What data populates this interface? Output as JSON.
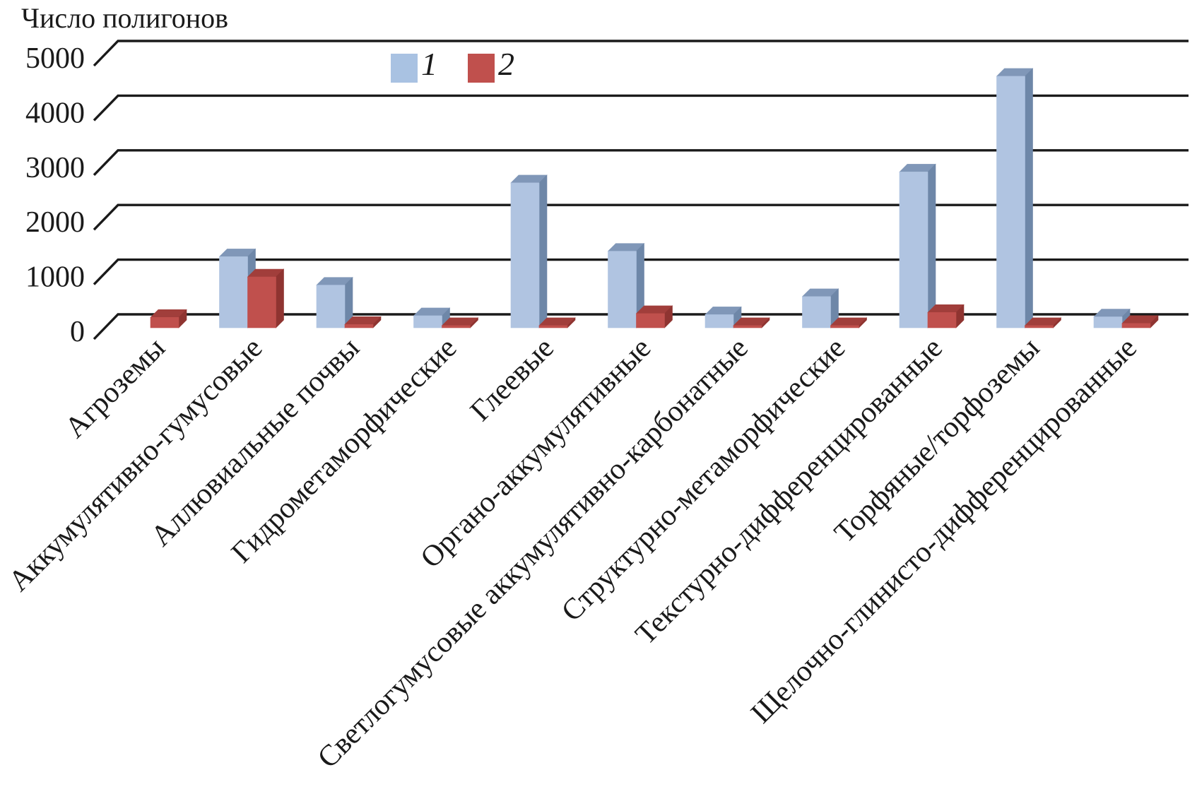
{
  "title": "Число полигонов",
  "legend": {
    "position": "top-center",
    "items": [
      {
        "label": "1",
        "color": "#a9c2e2"
      },
      {
        "label": "2",
        "color": "#c0504d"
      }
    ]
  },
  "chart_data": {
    "type": "bar",
    "projection": "3d-column",
    "title": "Число полигонов",
    "ylabel": "Число полигонов",
    "xlabel": "",
    "ylim": [
      0,
      5000
    ],
    "yticks": [
      0,
      1000,
      2000,
      3000,
      4000,
      5000
    ],
    "grid": true,
    "legend_position": "top-center",
    "categories": [
      "Агроземы",
      "Аккумулятивно-гумусовые",
      "Аллювиальные почвы",
      "Гидрометаморфические",
      "Глеевые",
      "Органо-аккумулятивные",
      "Светлогумусовые аккумулятивно-карбонатные",
      "Структурно-метаморфические",
      "Текстурно-дифференцированные",
      "Торфяные/торфоземы",
      "Щелочно-глинисто-дифференцированные"
    ],
    "series": [
      {
        "name": "1",
        "color_front": "#b0c4e1",
        "color_top": "#8097b8",
        "color_side": "#6e87a8",
        "values": [
          0,
          1300,
          780,
          220,
          2650,
          1400,
          240,
          570,
          2850,
          4600,
          200
        ]
      },
      {
        "name": "2",
        "color_front": "#c0504d",
        "color_top": "#a13e3b",
        "color_side": "#8f3431",
        "values": [
          190,
          930,
          60,
          40,
          40,
          260,
          40,
          40,
          280,
          40,
          80
        ]
      }
    ],
    "gridline_color": "#1a1a1a",
    "background_color": "#ffffff"
  }
}
